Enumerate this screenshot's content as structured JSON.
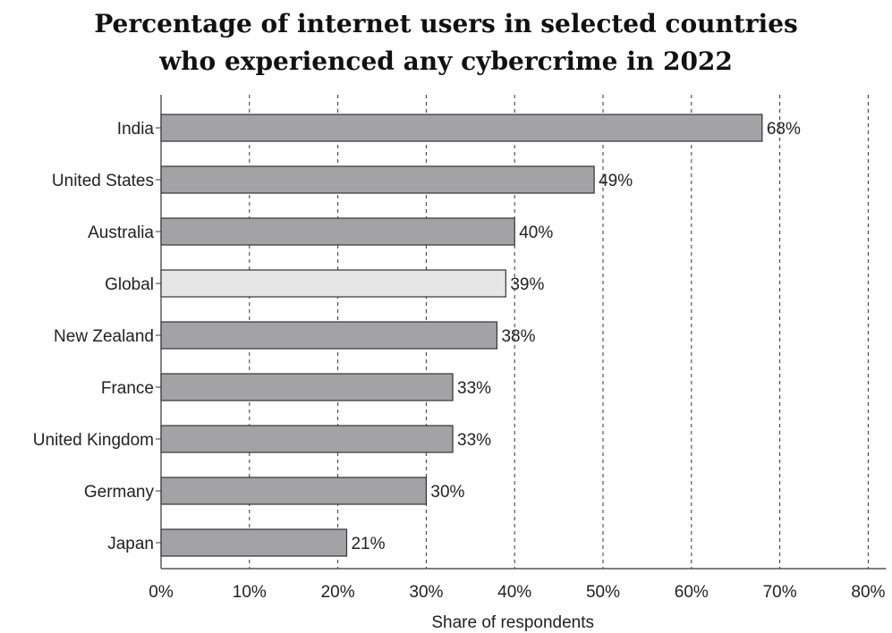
{
  "chart_data": {
    "type": "bar",
    "orientation": "horizontal",
    "title_line1": "Percentage of internet users in selected countries",
    "title_line2": "who experienced any cybercrime in 2022",
    "xlabel": "Share of respondents",
    "ylabel": "",
    "xlim": [
      0,
      80
    ],
    "x_ticks": [
      "0%",
      "10%",
      "20%",
      "30%",
      "40%",
      "50%",
      "60%",
      "70%",
      "80%"
    ],
    "x_tick_values": [
      0,
      10,
      20,
      30,
      40,
      50,
      60,
      70,
      80
    ],
    "grid": "vertical dashed",
    "categories": [
      "India",
      "United States",
      "Australia",
      "Global",
      "New Zealand",
      "France",
      "United Kingdom",
      "Germany",
      "Japan"
    ],
    "values": [
      68,
      49,
      40,
      39,
      38,
      33,
      33,
      30,
      21
    ],
    "value_labels": [
      "68%",
      "49%",
      "40%",
      "39%",
      "38%",
      "33%",
      "33%",
      "30%",
      "21%"
    ],
    "bar_color": "#a3a3a6",
    "highlight_color": "#e6e6e7",
    "highlight_category": "Global"
  }
}
